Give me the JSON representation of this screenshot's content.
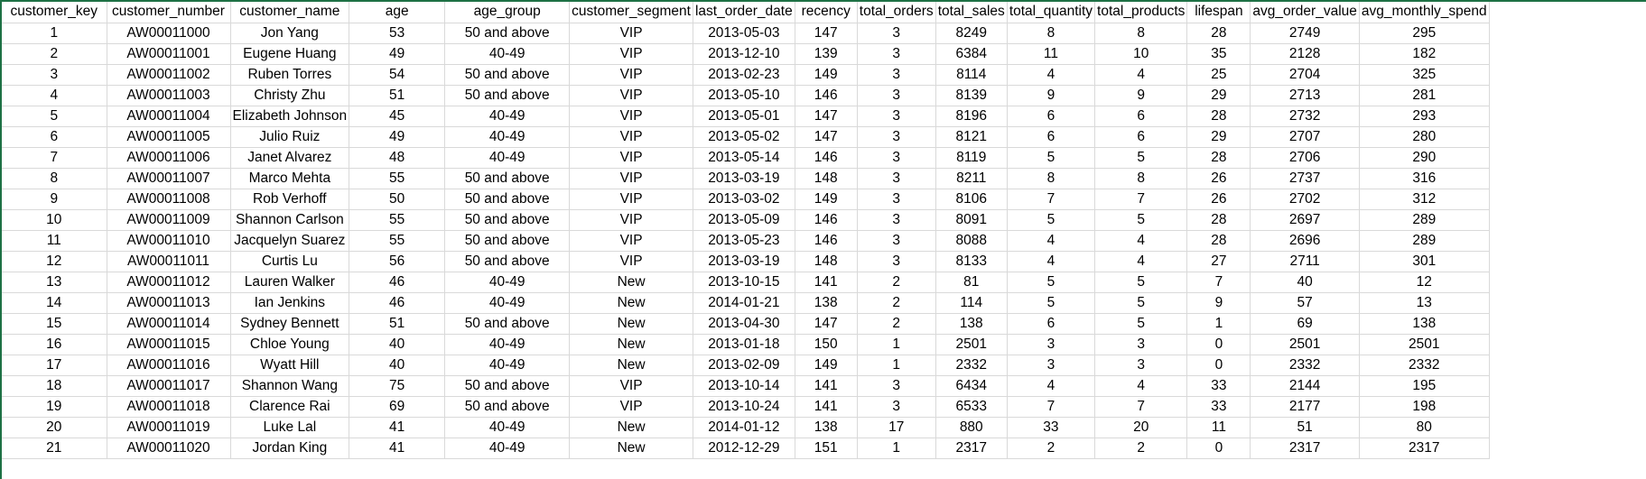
{
  "columns": [
    "customer_key",
    "customer_number",
    "customer_name",
    "age",
    "age_group",
    "customer_segment",
    "last_order_date",
    "recency",
    "total_orders",
    "total_sales",
    "total_quantity",
    "total_products",
    "lifespan",
    "avg_order_value",
    "avg_monthly_spend"
  ],
  "rows": [
    [
      "1",
      "AW00011000",
      "Jon Yang",
      "53",
      "50 and above",
      "VIP",
      "2013-05-03",
      "147",
      "3",
      "8249",
      "8",
      "8",
      "28",
      "2749",
      "295"
    ],
    [
      "2",
      "AW00011001",
      "Eugene Huang",
      "49",
      "40-49",
      "VIP",
      "2013-12-10",
      "139",
      "3",
      "6384",
      "11",
      "10",
      "35",
      "2128",
      "182"
    ],
    [
      "3",
      "AW00011002",
      "Ruben Torres",
      "54",
      "50 and above",
      "VIP",
      "2013-02-23",
      "149",
      "3",
      "8114",
      "4",
      "4",
      "25",
      "2704",
      "325"
    ],
    [
      "4",
      "AW00011003",
      "Christy Zhu",
      "51",
      "50 and above",
      "VIP",
      "2013-05-10",
      "146",
      "3",
      "8139",
      "9",
      "9",
      "29",
      "2713",
      "281"
    ],
    [
      "5",
      "AW00011004",
      "Elizabeth Johnson",
      "45",
      "40-49",
      "VIP",
      "2013-05-01",
      "147",
      "3",
      "8196",
      "6",
      "6",
      "28",
      "2732",
      "293"
    ],
    [
      "6",
      "AW00011005",
      "Julio Ruiz",
      "49",
      "40-49",
      "VIP",
      "2013-05-02",
      "147",
      "3",
      "8121",
      "6",
      "6",
      "29",
      "2707",
      "280"
    ],
    [
      "7",
      "AW00011006",
      "Janet Alvarez",
      "48",
      "40-49",
      "VIP",
      "2013-05-14",
      "146",
      "3",
      "8119",
      "5",
      "5",
      "28",
      "2706",
      "290"
    ],
    [
      "8",
      "AW00011007",
      "Marco Mehta",
      "55",
      "50 and above",
      "VIP",
      "2013-03-19",
      "148",
      "3",
      "8211",
      "8",
      "8",
      "26",
      "2737",
      "316"
    ],
    [
      "9",
      "AW00011008",
      "Rob Verhoff",
      "50",
      "50 and above",
      "VIP",
      "2013-03-02",
      "149",
      "3",
      "8106",
      "7",
      "7",
      "26",
      "2702",
      "312"
    ],
    [
      "10",
      "AW00011009",
      "Shannon Carlson",
      "55",
      "50 and above",
      "VIP",
      "2013-05-09",
      "146",
      "3",
      "8091",
      "5",
      "5",
      "28",
      "2697",
      "289"
    ],
    [
      "11",
      "AW00011010",
      "Jacquelyn Suarez",
      "55",
      "50 and above",
      "VIP",
      "2013-05-23",
      "146",
      "3",
      "8088",
      "4",
      "4",
      "28",
      "2696",
      "289"
    ],
    [
      "12",
      "AW00011011",
      "Curtis Lu",
      "56",
      "50 and above",
      "VIP",
      "2013-03-19",
      "148",
      "3",
      "8133",
      "4",
      "4",
      "27",
      "2711",
      "301"
    ],
    [
      "13",
      "AW00011012",
      "Lauren Walker",
      "46",
      "40-49",
      "New",
      "2013-10-15",
      "141",
      "2",
      "81",
      "5",
      "5",
      "7",
      "40",
      "12"
    ],
    [
      "14",
      "AW00011013",
      "Ian Jenkins",
      "46",
      "40-49",
      "New",
      "2014-01-21",
      "138",
      "2",
      "114",
      "5",
      "5",
      "9",
      "57",
      "13"
    ],
    [
      "15",
      "AW00011014",
      "Sydney Bennett",
      "51",
      "50 and above",
      "New",
      "2013-04-30",
      "147",
      "2",
      "138",
      "6",
      "5",
      "1",
      "69",
      "138"
    ],
    [
      "16",
      "AW00011015",
      "Chloe Young",
      "40",
      "40-49",
      "New",
      "2013-01-18",
      "150",
      "1",
      "2501",
      "3",
      "3",
      "0",
      "2501",
      "2501"
    ],
    [
      "17",
      "AW00011016",
      "Wyatt Hill",
      "40",
      "40-49",
      "New",
      "2013-02-09",
      "149",
      "1",
      "2332",
      "3",
      "3",
      "0",
      "2332",
      "2332"
    ],
    [
      "18",
      "AW00011017",
      "Shannon Wang",
      "75",
      "50 and above",
      "VIP",
      "2013-10-14",
      "141",
      "3",
      "6434",
      "4",
      "4",
      "33",
      "2144",
      "195"
    ],
    [
      "19",
      "AW00011018",
      "Clarence Rai",
      "69",
      "50 and above",
      "VIP",
      "2013-10-24",
      "141",
      "3",
      "6533",
      "7",
      "7",
      "33",
      "2177",
      "198"
    ],
    [
      "20",
      "AW00011019",
      "Luke Lal",
      "41",
      "40-49",
      "New",
      "2014-01-12",
      "138",
      "17",
      "880",
      "33",
      "20",
      "11",
      "51",
      "80"
    ],
    [
      "21",
      "AW00011020",
      "Jordan King",
      "41",
      "40-49",
      "New",
      "2012-12-29",
      "151",
      "1",
      "2317",
      "2",
      "2",
      "0",
      "2317",
      "2317"
    ]
  ],
  "colors": {
    "frame": "#1e7145",
    "gridline": "#d9d9d9",
    "text": "#000000"
  }
}
